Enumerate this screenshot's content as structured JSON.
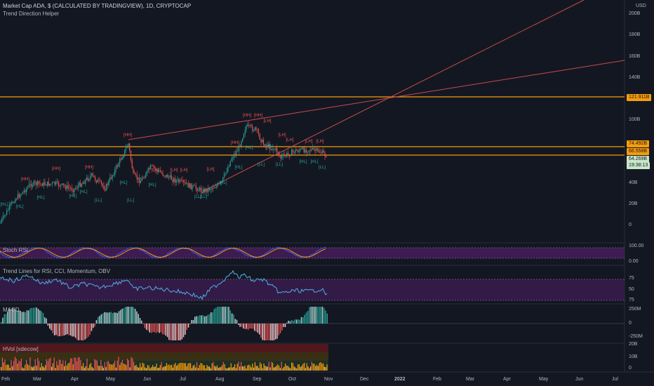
{
  "header": {
    "title": "Market Cap ADA, $ (CALCULATED BY TRADINGVIEW), 1D, CRYPTOCAP",
    "subtitle": "Trend Direction Helper"
  },
  "price_axis": {
    "currency": "USD",
    "labels": [
      "200B",
      "180B",
      "160B",
      "140B",
      "100B",
      "40B",
      "20B",
      "0"
    ]
  },
  "price_tags": [
    {
      "text": "121.911B",
      "bg": "#f59d0b",
      "fg": "#131722"
    },
    {
      "text": "74.492B",
      "bg": "#f59d0b",
      "fg": "#131722"
    },
    {
      "text": "66.558B",
      "bg": "#f59d0b",
      "fg": "#131722"
    },
    {
      "text": "64.269B",
      "bg": "#c8e6c9",
      "fg": "#131722"
    },
    {
      "text": "19:38:13",
      "bg": "#c8e6c9",
      "fg": "#131722"
    }
  ],
  "panes": {
    "stoch": {
      "label": "Stoch RSI",
      "ticks": [
        "100.00",
        "0.00"
      ]
    },
    "trendlines": {
      "label": "Trend Lines for RSI, CCI, Momentum, OBV",
      "ticks": [
        "75",
        "50",
        "75"
      ]
    },
    "macd": {
      "label": "MACD",
      "ticks": [
        "250M",
        "0",
        "-250M"
      ]
    },
    "hvol": {
      "label": "HVol [xdecow]",
      "ticks": [
        "20B",
        "10B",
        "0"
      ]
    }
  },
  "time_axis": [
    "Feb",
    "Mar",
    "Apr",
    "May",
    "Jun",
    "Jul",
    "Aug",
    "Sep",
    "Oct",
    "Nov",
    "Dec",
    "2022",
    "Feb",
    "Mar",
    "Apr",
    "May",
    "Jun",
    "Jul"
  ],
  "pivots": {
    "hh": "[HH]",
    "hl": "[HL]",
    "ll": "[LL]",
    "lh": "[LH]"
  },
  "colors": {
    "background": "#131722",
    "up": "#26a69a",
    "down": "#ef5350",
    "level": "#f59d0b",
    "trendline": "#c84b4b",
    "stoch_band": "#4a1e5e"
  }
}
